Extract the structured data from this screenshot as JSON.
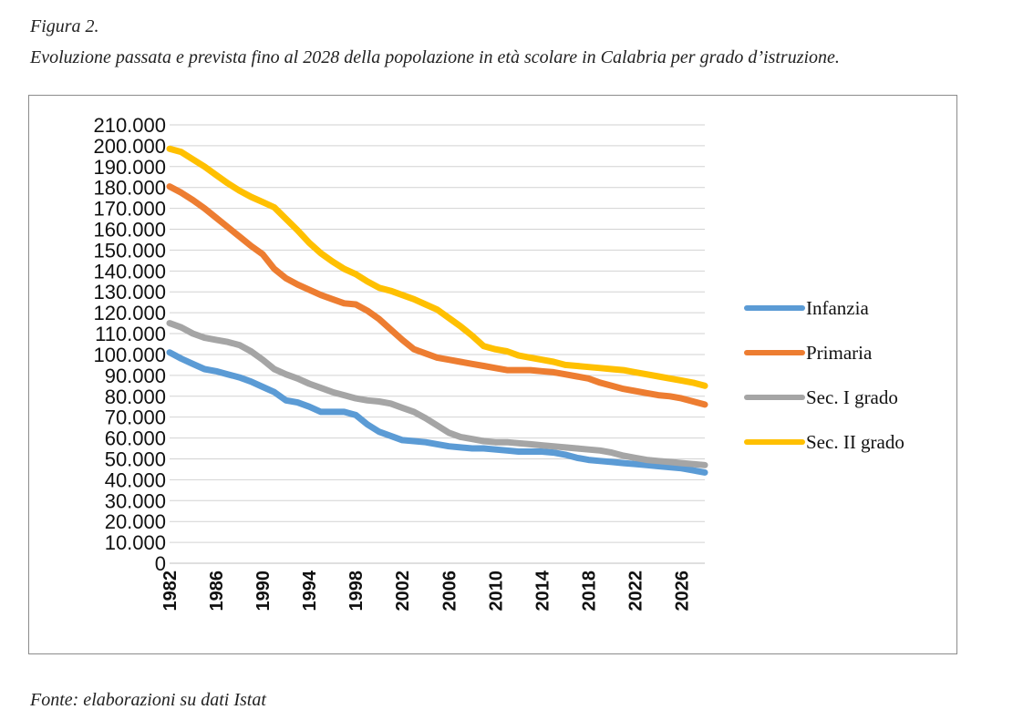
{
  "figure_label": "Figura 2.",
  "caption": "Evoluzione passata e prevista fino al 2028 della popolazione in età scolare in Calabria per grado d’istruzione.",
  "source": "Fonte: elaborazioni su dati Istat",
  "chart_data": {
    "type": "line",
    "title": "",
    "xlabel": "",
    "ylabel": "",
    "ylim": [
      0,
      210000
    ],
    "yticks": [
      0,
      10000,
      20000,
      30000,
      40000,
      50000,
      60000,
      70000,
      80000,
      90000,
      100000,
      110000,
      120000,
      130000,
      140000,
      150000,
      160000,
      170000,
      180000,
      190000,
      200000,
      210000
    ],
    "ytick_labels": [
      "0",
      "10.000",
      "20.000",
      "30.000",
      "40.000",
      "50.000",
      "60.000",
      "70.000",
      "80.000",
      "90.000",
      "100.000",
      "110.000",
      "120.000",
      "130.000",
      "140.000",
      "150.000",
      "160.000",
      "170.000",
      "180.000",
      "190.000",
      "200.000",
      "210.000"
    ],
    "x": [
      1982,
      1983,
      1984,
      1985,
      1986,
      1987,
      1988,
      1989,
      1990,
      1991,
      1992,
      1993,
      1994,
      1995,
      1996,
      1997,
      1998,
      1999,
      2000,
      2001,
      2002,
      2003,
      2004,
      2005,
      2006,
      2007,
      2008,
      2009,
      2010,
      2011,
      2012,
      2013,
      2014,
      2015,
      2016,
      2017,
      2018,
      2019,
      2020,
      2021,
      2022,
      2023,
      2024,
      2025,
      2026,
      2027,
      2028
    ],
    "xtick_labels": [
      "1982",
      "1986",
      "1990",
      "1994",
      "1998",
      "2002",
      "2006",
      "2010",
      "2014",
      "2018",
      "2022",
      "2026"
    ],
    "xtick_values": [
      1982,
      1986,
      1990,
      1994,
      1998,
      2002,
      2006,
      2010,
      2014,
      2018,
      2022,
      2026
    ],
    "grid": true,
    "legend_position": "right",
    "series": [
      {
        "name": "Infanzia",
        "color": "#5b9bd5",
        "values": [
          101000,
          98000,
          95500,
          93000,
          92000,
          90500,
          89000,
          87000,
          84500,
          82000,
          78000,
          77000,
          75000,
          72500,
          72500,
          72500,
          71000,
          66500,
          63000,
          61000,
          59000,
          58500,
          58000,
          57000,
          56000,
          55500,
          55000,
          55000,
          54500,
          54000,
          53500,
          53500,
          53500,
          53000,
          52000,
          50500,
          49500,
          49000,
          48500,
          48000,
          47500,
          47000,
          46500,
          46000,
          45500,
          44500,
          43500
        ]
      },
      {
        "name": "Primaria",
        "color": "#ed7d31",
        "values": [
          180500,
          177500,
          174000,
          170000,
          165500,
          161000,
          156500,
          152000,
          148000,
          141000,
          136500,
          133500,
          131000,
          128500,
          126500,
          124500,
          124000,
          121000,
          117000,
          112000,
          107000,
          102500,
          100500,
          98500,
          97500,
          96500,
          95500,
          94500,
          93500,
          92500,
          92500,
          92500,
          92000,
          91500,
          90500,
          89500,
          88500,
          86500,
          85000,
          83500,
          82500,
          81500,
          80500,
          80000,
          79000,
          77500,
          76000
        ]
      },
      {
        "name": "Sec. I grado",
        "color": "#a5a5a5",
        "values": [
          115000,
          113000,
          110000,
          108000,
          107000,
          106000,
          104500,
          101500,
          97500,
          93000,
          90500,
          88500,
          86000,
          84000,
          82000,
          80500,
          79000,
          78000,
          77500,
          76500,
          74500,
          72500,
          69500,
          66000,
          62500,
          60500,
          59500,
          58500,
          58000,
          58000,
          57500,
          57000,
          56500,
          56000,
          55500,
          55000,
          54500,
          54000,
          53000,
          51500,
          50500,
          49500,
          49000,
          48500,
          48000,
          47500,
          47000
        ]
      },
      {
        "name": "Sec. II grado",
        "color": "#ffc000",
        "values": [
          198500,
          197000,
          193500,
          190000,
          186000,
          182000,
          178500,
          175500,
          173000,
          170500,
          165000,
          159500,
          153500,
          148500,
          144500,
          141000,
          138500,
          135000,
          132000,
          130500,
          128500,
          126500,
          124000,
          121500,
          117500,
          113500,
          109000,
          104000,
          102500,
          101500,
          99500,
          98500,
          97500,
          96500,
          95000,
          94500,
          94000,
          93500,
          93000,
          92500,
          91500,
          90500,
          89500,
          88500,
          87500,
          86500,
          85000
        ]
      }
    ]
  }
}
